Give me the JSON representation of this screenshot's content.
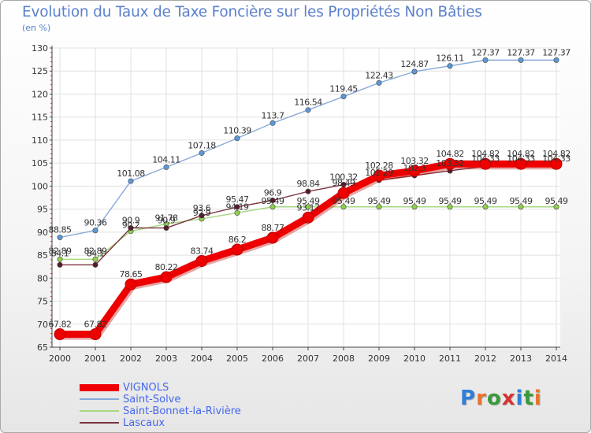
{
  "title": "Evolution du Taux de Taxe Foncière sur les Propriétés Non Bâties",
  "unit_label": "(en %)",
  "logo": {
    "text": "Proxiti",
    "letters": [
      "P",
      "r",
      "o",
      "x",
      "i",
      "t",
      "i"
    ],
    "colors": [
      "#2f7fd8",
      "#e8732e",
      "#3a9a3a",
      "#d63232",
      "#2f7fd8",
      "#3a9a3a",
      "#e8732e"
    ]
  },
  "chart_data": {
    "type": "line",
    "title": "Evolution du Taux de Taxe Foncière sur les Propriétés Non Bâties",
    "ylabel": "(en %)",
    "xlabel": "",
    "x": [
      2000,
      2001,
      2002,
      2003,
      2004,
      2005,
      2006,
      2007,
      2008,
      2009,
      2010,
      2011,
      2012,
      2013,
      2014
    ],
    "ylim": [
      65,
      130
    ],
    "yticks": [
      65,
      70,
      75,
      80,
      85,
      90,
      95,
      100,
      105,
      110,
      115,
      120,
      125,
      130
    ],
    "grid": true,
    "legend_position": "bottom-left",
    "series": [
      {
        "name": "VIGNOLS",
        "color": "#ee0000",
        "values": [
          67.82,
          67.82,
          78.65,
          80.22,
          83.74,
          86.2,
          88.77,
          93.17,
          98.49,
          102.28,
          103.32,
          104.82,
          104.82,
          104.82,
          104.82
        ],
        "labels": [
          "67.82",
          "67.82",
          "78.65",
          "80.22",
          "83.74",
          "86.2",
          "88.77",
          "93.17",
          "98.49",
          "102.28",
          "103.32",
          "104.82",
          "104.82",
          "104.82",
          "104.82"
        ]
      },
      {
        "name": "Saint-Solve",
        "color": "#88aad8",
        "values": [
          88.85,
          90.36,
          101.08,
          104.11,
          107.18,
          110.39,
          113.7,
          116.54,
          119.45,
          122.43,
          124.87,
          126.11,
          127.37,
          127.37,
          127.37
        ],
        "labels": [
          "88.85",
          "90.36",
          "101.08",
          "104.11",
          "107.18",
          "110.39",
          "113.7",
          "116.54",
          "119.45",
          "122.43",
          "124.87",
          "126.11",
          "127.37",
          "127.37",
          "127.37"
        ]
      },
      {
        "name": "Saint-Bonnet-la-Rivière",
        "color": "#a6d880",
        "values": [
          84.1,
          84.1,
          90.2,
          91.78,
          92.9,
          94.19,
          95.49,
          95.49,
          95.49,
          95.49,
          95.49,
          95.49,
          95.49,
          95.49,
          95.49
        ],
        "labels": [
          "84.1",
          "84.1",
          "90.2",
          "91.78",
          "92.9",
          "94.19",
          "95.49",
          "95.49",
          "95.49",
          "95.49",
          "95.49",
          "95.49",
          "95.49",
          "95.49",
          "95.49"
        ]
      },
      {
        "name": "Lascaux",
        "color": "#7a3340",
        "values": [
          82.89,
          82.89,
          90.9,
          90.9,
          93.6,
          95.47,
          96.9,
          98.84,
          100.32,
          101.29,
          102.3,
          103.32,
          104.33,
          104.33,
          104.33
        ],
        "labels": [
          "82.89",
          "82.89",
          "90.9",
          "90.9",
          "93.6",
          "95.47",
          "96.9",
          "98.84",
          "100.32",
          "101.29",
          "102.3",
          "103.32",
          "104.33",
          "104.33",
          "104.33"
        ]
      }
    ]
  }
}
